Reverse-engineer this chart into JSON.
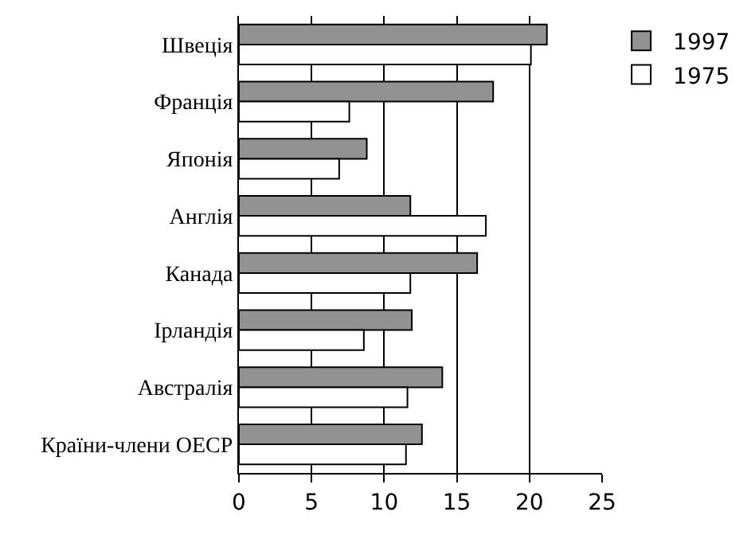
{
  "chart_data": {
    "type": "bar",
    "orientation": "horizontal",
    "categories": [
      "Швеція",
      "Франція",
      "Японія",
      "Англія",
      "Канада",
      "Ірландія",
      "Австралія",
      "Країни-члени ОЕСР"
    ],
    "series": [
      {
        "name": "1997",
        "color": "#929292",
        "values": [
          21.2,
          17.5,
          8.8,
          11.8,
          16.4,
          11.9,
          14.0,
          12.6
        ]
      },
      {
        "name": "1975",
        "color": "#ffffff",
        "values": [
          20.1,
          7.6,
          6.9,
          17.0,
          11.8,
          8.6,
          11.6,
          11.5
        ]
      }
    ],
    "xlim": [
      0,
      25
    ],
    "xticks": [
      0,
      5,
      10,
      15,
      20,
      25
    ],
    "grid": "x",
    "legend": "top right"
  }
}
